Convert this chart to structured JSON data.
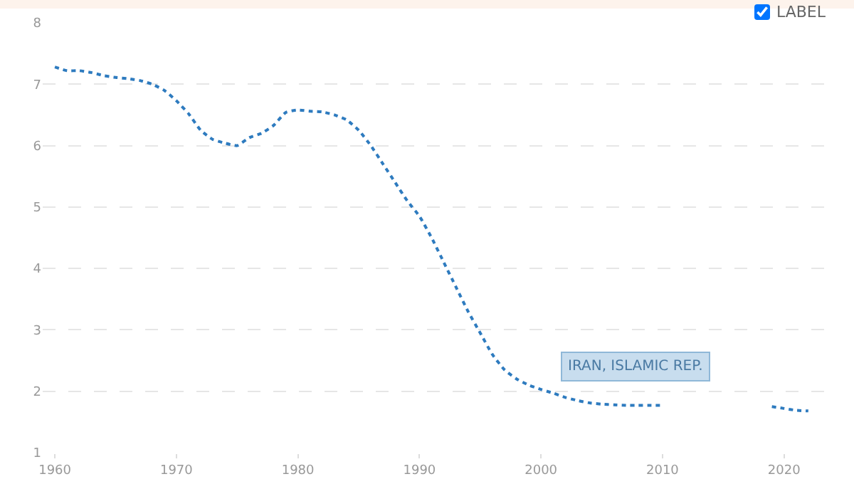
{
  "chart_data": {
    "type": "line",
    "x": [
      1960,
      1961,
      1962,
      1963,
      1964,
      1965,
      1966,
      1967,
      1968,
      1969,
      1970,
      1971,
      1972,
      1973,
      1974,
      1975,
      1976,
      1977,
      1978,
      1979,
      1980,
      1981,
      1982,
      1983,
      1984,
      1985,
      1986,
      1987,
      1988,
      1989,
      1990,
      1991,
      1992,
      1993,
      1994,
      1995,
      1996,
      1997,
      1998,
      1999,
      2000,
      2001,
      2002,
      2003,
      2004,
      2005,
      2006,
      2007,
      2008,
      2009,
      2010,
      2011,
      2012,
      2013,
      2014,
      2015,
      2016,
      2017,
      2018,
      2019,
      2020,
      2021,
      2022
    ],
    "series": [
      {
        "color": "#2e7bbf",
        "values": [
          7.28,
          7.22,
          7.22,
          7.19,
          7.14,
          7.11,
          7.09,
          7.06,
          7.0,
          6.9,
          6.73,
          6.52,
          6.25,
          6.1,
          6.04,
          6.0,
          6.13,
          6.2,
          6.33,
          6.54,
          6.58,
          6.56,
          6.55,
          6.5,
          6.42,
          6.25,
          6.0,
          5.7,
          5.4,
          5.1,
          4.85,
          4.5,
          4.1,
          3.7,
          3.3,
          2.95,
          2.6,
          2.35,
          2.2,
          2.1,
          2.03,
          1.97,
          1.9,
          1.85,
          1.81,
          1.79,
          1.78,
          1.77,
          1.77,
          1.77,
          1.77,
          null,
          null,
          null,
          null,
          null,
          null,
          null,
          null,
          1.75,
          1.72,
          1.69,
          1.68
        ]
      }
    ],
    "xlim": [
      1959,
      2024
    ],
    "xticks": [
      1960,
      1970,
      1980,
      1990,
      2000,
      2010,
      2020
    ],
    "ylim": [
      1,
      8
    ],
    "yticks": [
      1,
      2,
      3,
      4,
      5,
      6,
      7,
      8
    ],
    "grid": "y",
    "marker": "none",
    "line_style": "dotted",
    "legend": false,
    "annotations": [
      "IRAN, ISLAMIC REP.",
      "LABEL"
    ]
  }
}
